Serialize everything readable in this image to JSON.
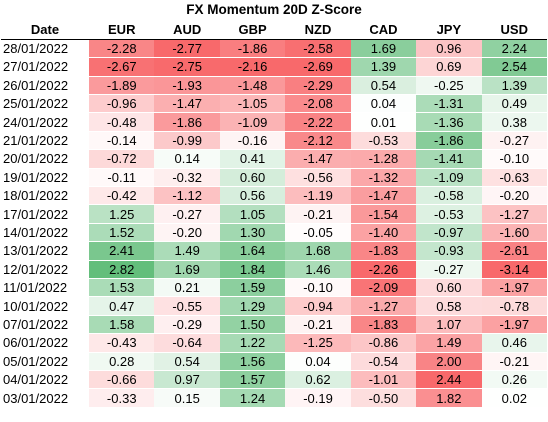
{
  "title": "FX Momentum 20D Z-Score",
  "headers": [
    "Date",
    "EUR",
    "AUD",
    "GBP",
    "NZD",
    "CAD",
    "JPY",
    "USD"
  ],
  "rows": [
    {
      "date": "28/01/2022",
      "values": [
        "-2.28",
        "-2.77",
        "-1.86",
        "-2.58",
        "1.69",
        "0.96",
        "2.24"
      ]
    },
    {
      "date": "27/01/2022",
      "values": [
        "-2.67",
        "-2.75",
        "-2.16",
        "-2.69",
        "1.39",
        "0.69",
        "2.54"
      ]
    },
    {
      "date": "26/01/2022",
      "values": [
        "-1.89",
        "-1.93",
        "-1.48",
        "-2.29",
        "0.54",
        "-0.25",
        "1.39"
      ]
    },
    {
      "date": "25/01/2022",
      "values": [
        "-0.96",
        "-1.47",
        "-1.05",
        "-2.08",
        "0.04",
        "-1.31",
        "0.49"
      ]
    },
    {
      "date": "24/01/2022",
      "values": [
        "-0.48",
        "-1.86",
        "-1.09",
        "-2.22",
        "0.01",
        "-1.36",
        "0.38"
      ]
    },
    {
      "date": "21/01/2022",
      "values": [
        "-0.14",
        "-0.99",
        "-0.16",
        "-2.12",
        "-0.53",
        "-1.86",
        "-0.27"
      ]
    },
    {
      "date": "20/01/2022",
      "values": [
        "-0.72",
        "0.14",
        "0.41",
        "-1.47",
        "-1.28",
        "-1.41",
        "-0.10"
      ]
    },
    {
      "date": "19/01/2022",
      "values": [
        "-0.11",
        "-0.32",
        "0.60",
        "-0.56",
        "-1.32",
        "-1.09",
        "-0.63"
      ]
    },
    {
      "date": "18/01/2022",
      "values": [
        "-0.42",
        "-1.12",
        "0.56",
        "-1.19",
        "-1.47",
        "-0.58",
        "-0.20"
      ]
    },
    {
      "date": "17/01/2022",
      "values": [
        "1.25",
        "-0.27",
        "1.05",
        "-0.21",
        "-1.54",
        "-0.53",
        "-1.27"
      ]
    },
    {
      "date": "14/01/2022",
      "values": [
        "1.52",
        "-0.20",
        "1.30",
        "-0.05",
        "-1.40",
        "-0.97",
        "-1.60"
      ]
    },
    {
      "date": "13/01/2022",
      "values": [
        "2.41",
        "1.49",
        "1.64",
        "1.68",
        "-1.83",
        "-0.93",
        "-2.61"
      ]
    },
    {
      "date": "12/01/2022",
      "values": [
        "2.82",
        "1.69",
        "1.84",
        "1.46",
        "-2.26",
        "-0.27",
        "-3.14"
      ]
    },
    {
      "date": "11/01/2022",
      "values": [
        "1.53",
        "0.21",
        "1.59",
        "-0.10",
        "-2.09",
        "0.60",
        "-1.97"
      ]
    },
    {
      "date": "10/01/2022",
      "values": [
        "0.47",
        "-0.55",
        "1.29",
        "-0.94",
        "-1.27",
        "0.58",
        "-0.78"
      ]
    },
    {
      "date": "07/01/2022",
      "values": [
        "1.58",
        "-0.29",
        "1.50",
        "-0.21",
        "-1.83",
        "1.07",
        "-1.97"
      ]
    },
    {
      "date": "06/01/2022",
      "values": [
        "-0.43",
        "-0.64",
        "1.22",
        "-1.25",
        "-0.86",
        "1.49",
        "0.46"
      ]
    },
    {
      "date": "05/01/2022",
      "values": [
        "0.28",
        "0.54",
        "1.56",
        "0.04",
        "-0.54",
        "2.00",
        "-0.21"
      ]
    },
    {
      "date": "04/01/2022",
      "values": [
        "-0.66",
        "0.97",
        "1.57",
        "0.62",
        "-1.01",
        "2.44",
        "0.26"
      ]
    },
    {
      "date": "03/01/2022",
      "values": [
        "-0.33",
        "0.15",
        "1.24",
        "-0.19",
        "-0.50",
        "1.82",
        "0.02"
      ]
    }
  ],
  "colors": {
    "positive_by_column": [
      "green",
      "green",
      "green",
      "green",
      "green",
      "red",
      "green"
    ],
    "green_max": "#63be7b",
    "red_max": "#f8696b",
    "mid": "#ffffff"
  }
}
